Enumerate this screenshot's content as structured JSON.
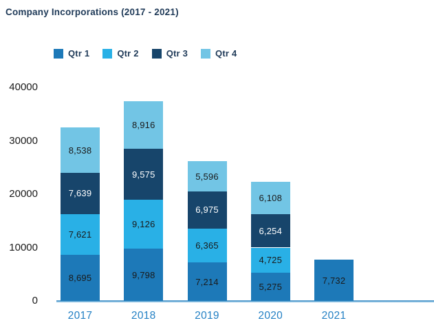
{
  "title": "Company Incorporations (2017 - 2021)",
  "colors": {
    "qtr1": "#1d79b8",
    "qtr2": "#29b0e6",
    "qtr3": "#17456b",
    "qtr4": "#72c5e5",
    "title_text": "#1f3a58",
    "year_label": "#2380c4",
    "tick_label": "#1a1a1a",
    "axis_line": "#5fa4d2",
    "label_on_dark": "#ffffff",
    "label_on_light": "#1a1a1a"
  },
  "legend": {
    "items": [
      {
        "label": "Qtr 1",
        "color": "#1d79b8"
      },
      {
        "label": "Qtr 2",
        "color": "#29b0e6"
      },
      {
        "label": "Qtr 3",
        "color": "#17456b"
      },
      {
        "label": "Qtr 4",
        "color": "#72c5e5"
      }
    ]
  },
  "chart_data": {
    "type": "bar",
    "stacked": true,
    "title": "Company Incorporations (2017 - 2021)",
    "categories": [
      "2017",
      "2018",
      "2019",
      "2020",
      "2021"
    ],
    "series": [
      {
        "name": "Qtr 1",
        "color": "#1d79b8",
        "label_color": "#1a1a1a",
        "values": [
          8695,
          9798,
          7214,
          5275,
          7732
        ],
        "labels": [
          "8,695",
          "9,798",
          "7,214",
          "5,275",
          "7,732"
        ]
      },
      {
        "name": "Qtr 2",
        "color": "#29b0e6",
        "label_color": "#1a1a1a",
        "values": [
          7621,
          9126,
          6365,
          4725,
          null
        ],
        "labels": [
          "7,621",
          "9,126",
          "6,365",
          "4,725",
          null
        ]
      },
      {
        "name": "Qtr 3",
        "color": "#17456b",
        "label_color": "#ffffff",
        "values": [
          7639,
          9575,
          6975,
          6254,
          null
        ],
        "labels": [
          "7,639",
          "9,575",
          "6,975",
          "6,254",
          null
        ]
      },
      {
        "name": "Qtr 4",
        "color": "#72c5e5",
        "label_color": "#1a1a1a",
        "values": [
          8538,
          8916,
          5596,
          6108,
          null
        ],
        "labels": [
          "8,538",
          "8,916",
          "5,596",
          "6,108",
          null
        ]
      }
    ],
    "totals": [
      32493,
      37415,
      26150,
      22362,
      7732
    ],
    "y_ticks": [
      0,
      10000,
      20000,
      30000,
      40000
    ],
    "ylim": [
      0,
      40000
    ],
    "xlabel": "",
    "ylabel": "",
    "grid": false,
    "legend_position": "top"
  }
}
